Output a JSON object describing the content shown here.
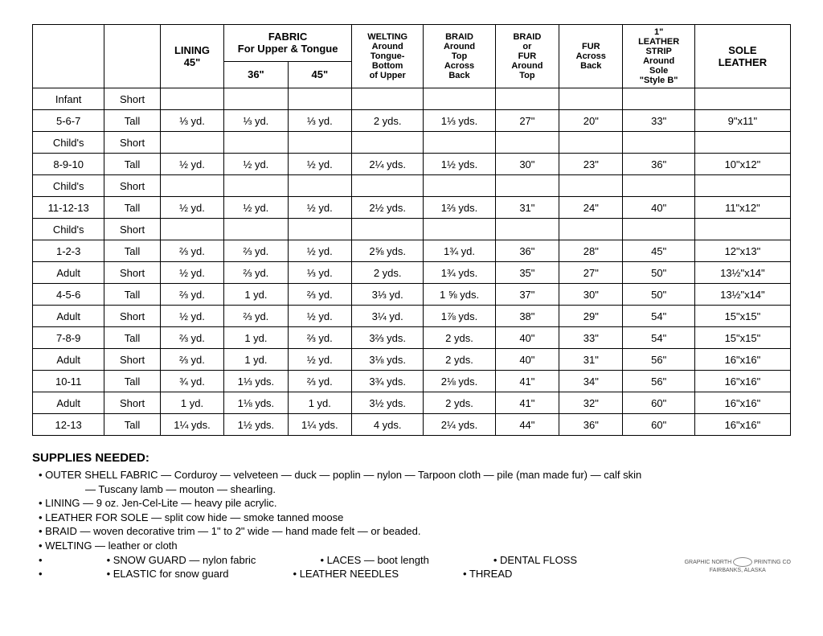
{
  "table": {
    "headers": {
      "lining": "LINING\n45\"",
      "fabric_group": "FABRIC\nFor Upper & Tongue",
      "fabric36": "36\"",
      "fabric45": "45\"",
      "welting": "WELTING\nAround\nTongue-\nBottom\nof Upper",
      "braid_back": "BRAID\nAround\nTop\nAcross\nBack",
      "braid_top": "BRAID\nor\nFUR\nAround\nTop",
      "fur_back": "FUR\nAcross\nBack",
      "strip": "1\"\nLEATHER\nSTRIP\nAround\nSole\n\"Style B\"",
      "sole": "SOLE\nLEATHER"
    },
    "rows": [
      {
        "size": "Infant",
        "h": "Short",
        "vals": [
          "",
          "",
          "",
          "",
          "",
          "",
          "",
          "",
          ""
        ]
      },
      {
        "size": "5-6-7",
        "h": "Tall",
        "vals": [
          "⅓ yd.",
          "⅓ yd.",
          "⅓ yd.",
          "2 yds.",
          "1⅓ yds.",
          "27\"",
          "20\"",
          "33\"",
          "9\"x11\""
        ]
      },
      {
        "size": "Child's",
        "h": "Short",
        "vals": [
          "",
          "",
          "",
          "",
          "",
          "",
          "",
          "",
          ""
        ]
      },
      {
        "size": "8-9-10",
        "h": "Tall",
        "vals": [
          "½ yd.",
          "½ yd.",
          "½ yd.",
          "2¼ yds.",
          "1½ yds.",
          "30\"",
          "23\"",
          "36\"",
          "10\"x12\""
        ]
      },
      {
        "size": "Child's",
        "h": "Short",
        "vals": [
          "",
          "",
          "",
          "",
          "",
          "",
          "",
          "",
          ""
        ]
      },
      {
        "size": "11-12-13",
        "h": "Tall",
        "vals": [
          "½ yd.",
          "½ yd.",
          "½ yd.",
          "2½ yds.",
          "1⅔ yds.",
          "31\"",
          "24\"",
          "40\"",
          "11\"x12\""
        ]
      },
      {
        "size": "Child's",
        "h": "Short",
        "vals": [
          "",
          "",
          "",
          "",
          "",
          "",
          "",
          "",
          ""
        ]
      },
      {
        "size": "1-2-3",
        "h": "Tall",
        "vals": [
          "⅔ yd.",
          "⅔ yd.",
          "½ yd.",
          "2⅝ yds.",
          "1¾ yd.",
          "36\"",
          "28\"",
          "45\"",
          "12\"x13\""
        ]
      },
      {
        "size": "Adult",
        "h": "Short",
        "vals": [
          "½ yd.",
          "⅔ yd.",
          "⅓ yd.",
          "2 yds.",
          "1¾ yds.",
          "35\"",
          "27\"",
          "50\"",
          "13½\"x14\""
        ]
      },
      {
        "size": "4-5-6",
        "h": "Tall",
        "vals": [
          "⅔ yd.",
          "1 yd.",
          "⅔ yd.",
          "3⅓ yd.",
          "1 ⅝ yds.",
          "37\"",
          "30\"",
          "50\"",
          "13½\"x14\""
        ]
      },
      {
        "size": "Adult",
        "h": "Short",
        "vals": [
          "½ yd.",
          "⅔ yd.",
          "½ yd.",
          "3¼ yd.",
          "1⅞ yds.",
          "38\"",
          "29\"",
          "54\"",
          "15\"x15\""
        ]
      },
      {
        "size": "7-8-9",
        "h": "Tall",
        "vals": [
          "⅔ yd.",
          "1 yd.",
          "⅔ yd.",
          "3⅔ yds.",
          "2 yds.",
          "40\"",
          "33\"",
          "54\"",
          "15\"x15\""
        ]
      },
      {
        "size": "Adult",
        "h": "Short",
        "vals": [
          "⅔ yd.",
          "1 yd.",
          "½ yd.",
          "3⅛ yds.",
          "2 yds.",
          "40\"",
          "31\"",
          "56\"",
          "16\"x16\""
        ]
      },
      {
        "size": "10-11",
        "h": "Tall",
        "vals": [
          "¾ yd.",
          "1⅓ yds.",
          "⅔ yd.",
          "3¾ yds.",
          "2⅛ yds.",
          "41\"",
          "34\"",
          "56\"",
          "16\"x16\""
        ]
      },
      {
        "size": "Adult",
        "h": "Short",
        "vals": [
          "1 yd.",
          "1⅛ yds.",
          "1 yd.",
          "3½ yds.",
          "2 yds.",
          "41\"",
          "32\"",
          "60\"",
          "16\"x16\""
        ]
      },
      {
        "size": "12-13",
        "h": "Tall",
        "vals": [
          "1¼ yds.",
          "1½ yds.",
          "1¼ yds.",
          "4 yds.",
          "2¼ yds.",
          "44\"",
          "36\"",
          "60\"",
          "16\"x16\""
        ]
      }
    ]
  },
  "supplies": {
    "title": "SUPPLIES NEEDED:",
    "lines": [
      "OUTER SHELL FABRIC — Corduroy — velveteen — duck — poplin — nylon — Tarpoon cloth — pile (man made fur) — calf skin",
      "— Tuscany lamb — mouton — shearling.",
      "LINING — 9 oz. Jen-Cel-Lite — heavy pile acrylic.",
      "LEATHER FOR SOLE — split cow hide — smoke tanned moose",
      "BRAID — woven decorative trim — 1\" to 2\" wide — hand made felt — or beaded.",
      "WELTING — leather or cloth"
    ],
    "row1": [
      "SNOW GUARD — nylon fabric",
      "LACES — boot length",
      "DENTAL FLOSS"
    ],
    "row2": [
      "ELASTIC for snow guard",
      "LEATHER NEEDLES",
      "THREAD"
    ]
  },
  "footer": {
    "line1": "GRAPHIC NORTH",
    "line2": "PRINTING CO",
    "line3": "FAIRBANKS, ALASKA"
  }
}
